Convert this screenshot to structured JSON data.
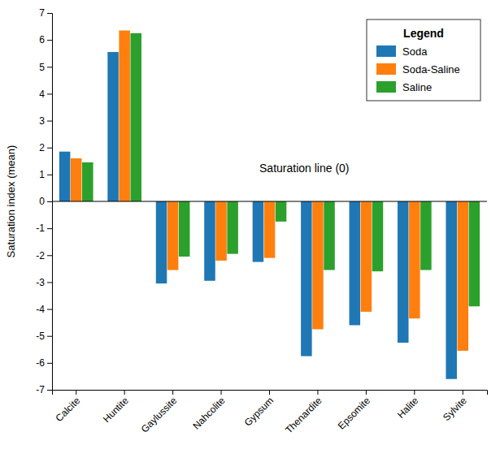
{
  "chart_data": {
    "type": "bar",
    "ylabel": "Saturation index (mean)",
    "annotation": "Saturation line (0)",
    "categories": [
      "Calcite",
      "Huntite",
      "Gaylussite",
      "Nahcolite",
      "Gypsum",
      "Thenardite",
      "Epsomite",
      "Halite",
      "Sylvite"
    ],
    "series": [
      {
        "name": "Soda",
        "values": [
          1.85,
          5.55,
          -3.05,
          -2.95,
          -2.25,
          -5.75,
          -4.6,
          -5.25,
          -6.6
        ]
      },
      {
        "name": "Soda-Saline",
        "values": [
          1.6,
          6.35,
          -2.55,
          -2.2,
          -2.1,
          -4.75,
          -4.1,
          -4.35,
          -5.55
        ]
      },
      {
        "name": "Saline",
        "values": [
          1.45,
          6.25,
          -2.05,
          -1.95,
          -0.75,
          -2.55,
          -2.6,
          -2.55,
          -3.9
        ]
      }
    ],
    "legend_title": "Legend",
    "legend": "upper right",
    "ylim": [
      -7,
      7
    ],
    "yticks": [
      -7,
      -6,
      -5,
      -4,
      -3,
      -2,
      -1,
      0,
      1,
      2,
      3,
      4,
      5,
      6,
      7
    ],
    "grid": false
  }
}
